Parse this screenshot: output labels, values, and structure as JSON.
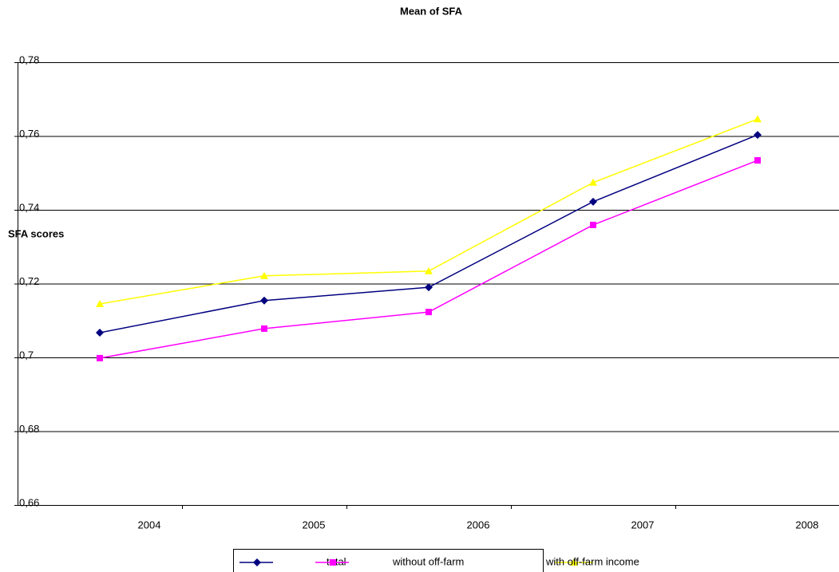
{
  "chart_data": {
    "type": "line",
    "title": "Mean of SFA",
    "y_label": "SFA scores",
    "categories": [
      "2004",
      "2005",
      "2006",
      "2007",
      "2008"
    ],
    "series": [
      {
        "name": "total",
        "color": "#000080",
        "marker": "diamond",
        "values": [
          0.7067,
          0.7154,
          0.719,
          0.7422,
          0.7603
        ]
      },
      {
        "name": "without off-farm",
        "color": "#ff00ff",
        "marker": "square",
        "values": [
          0.6998,
          0.7078,
          0.7123,
          0.7359,
          0.7534
        ]
      },
      {
        "name": "with off-farm income",
        "color": "#ffff00",
        "marker": "triangle",
        "values": [
          0.7145,
          0.7221,
          0.7234,
          0.7474,
          0.7646
        ]
      }
    ],
    "ylim": [
      0.66,
      0.78
    ],
    "yticks": [
      {
        "value": 0.66,
        "label": "0,66"
      },
      {
        "value": 0.68,
        "label": "0,68"
      },
      {
        "value": 0.7,
        "label": "0,7"
      },
      {
        "value": 0.72,
        "label": "0,72"
      },
      {
        "value": 0.74,
        "label": "0,74"
      },
      {
        "value": 0.76,
        "label": "0,76"
      },
      {
        "value": 0.78,
        "label": "0,78"
      }
    ],
    "grid": true
  }
}
